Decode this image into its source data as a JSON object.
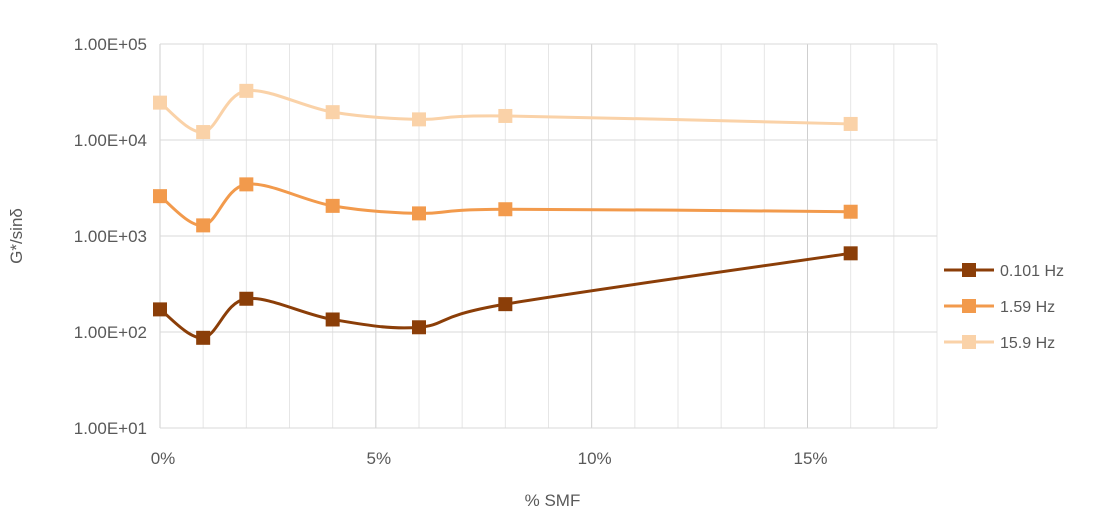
{
  "chart_data": {
    "type": "line",
    "title": "",
    "xlabel": "% SMF",
    "ylabel": "G*/sinδ",
    "x_scale": "linear",
    "y_scale": "log",
    "xlim": [
      0,
      18
    ],
    "ylim": [
      10,
      100000
    ],
    "x_ticks": [
      {
        "value": 0,
        "label": "0%"
      },
      {
        "value": 5,
        "label": "5%"
      },
      {
        "value": 10,
        "label": "10%"
      },
      {
        "value": 15,
        "label": "15%"
      }
    ],
    "y_ticks": [
      {
        "value": 10,
        "label": "1.00E+01"
      },
      {
        "value": 100,
        "label": "1.00E+02"
      },
      {
        "value": 1000,
        "label": "1.00E+03"
      },
      {
        "value": 10000,
        "label": "1.00E+04"
      },
      {
        "value": 100000,
        "label": "1.00E+05"
      }
    ],
    "grid": true,
    "legend_position": "right",
    "x": [
      0,
      1,
      2,
      4,
      6,
      8,
      16
    ],
    "series": [
      {
        "name": "0.101 Hz",
        "color": "#8B3E08",
        "values": [
          172,
          87,
          222,
          135,
          112,
          195,
          660
        ]
      },
      {
        "name": "1.59 Hz",
        "color": "#F29A4C",
        "values": [
          2600,
          1290,
          3450,
          2060,
          1720,
          1900,
          1790
        ]
      },
      {
        "name": "15.9 Hz",
        "color": "#FAD2A8",
        "values": [
          24500,
          12100,
          32500,
          19500,
          16400,
          17800,
          14700
        ]
      }
    ]
  }
}
